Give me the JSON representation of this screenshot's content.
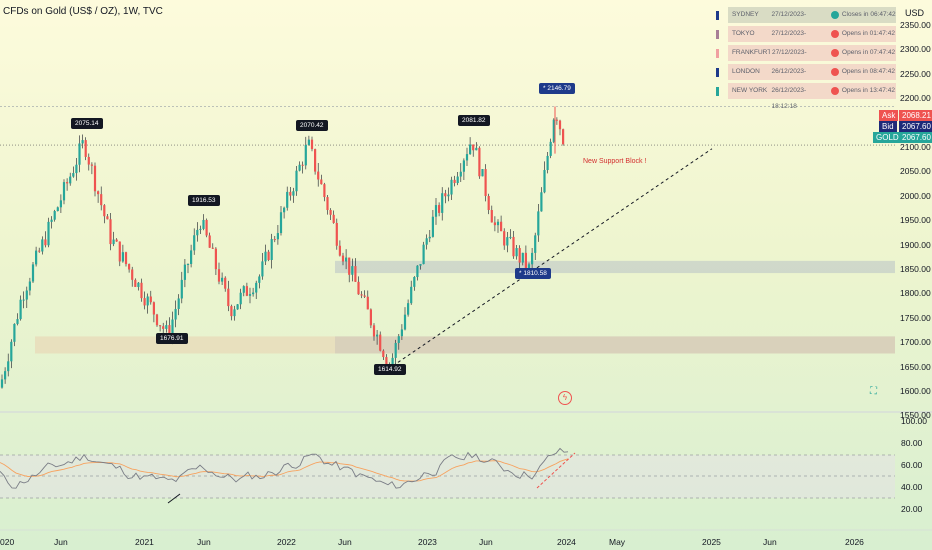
{
  "title": "CFDs on Gold (US$ / OZ), 1W, TVC",
  "currency": "USD",
  "sessions": [
    {
      "name": "SYDNEY",
      "time": "27/12/2023-09:12:18",
      "status": "Closes in 06:47:42",
      "open": true,
      "color": "#1e3a8a",
      "bg": "#d9dcc4"
    },
    {
      "name": "TOKYO",
      "time": "27/12/2023-07:12:18",
      "status": "Opens in 01:47:42",
      "open": false,
      "color": "#a87e96",
      "bg": "#f3d9c9"
    },
    {
      "name": "FRANKFURT",
      "time": "27/12/2023-00:12:18",
      "status": "Opens in 07:47:42",
      "open": false,
      "color": "#f0a0a0",
      "bg": "#f3d9c9"
    },
    {
      "name": "LONDON",
      "time": "26/12/2023-23:12:18",
      "status": "Opens in 08:47:42",
      "open": false,
      "color": "#1e3a8a",
      "bg": "#f3d9c9"
    },
    {
      "name": "NEW YORK",
      "time": "26/12/2023-18:12:18",
      "status": "Opens in 13:47:42",
      "open": false,
      "color": "#26a69a",
      "bg": "#f3d9c9"
    }
  ],
  "price_axis": [
    "2350.00",
    "2300.00",
    "2250.00",
    "2200.00",
    "2150.00",
    "2100.00",
    "2050.00",
    "2000.00",
    "1950.00",
    "1900.00",
    "1850.00",
    "1800.00",
    "1750.00",
    "1700.00",
    "1650.00",
    "1600.00",
    "1550.00"
  ],
  "price_tags": {
    "ask_label": "Ask",
    "ask": "2068.21",
    "bid_label": "Bid",
    "bid": "2067.60",
    "symbol": "GOLD",
    "last": "2067.60"
  },
  "rsi_axis": [
    "100.00",
    "80.00",
    "60.00",
    "40.00",
    "20.00"
  ],
  "time_axis": [
    "020",
    "Jun",
    "2021",
    "Jun",
    "2022",
    "Jun",
    "2023",
    "Jun",
    "2024",
    "May",
    "2025",
    "Jun",
    "2026"
  ],
  "annotations": {
    "a1": "2075.14",
    "a2": "1916.53",
    "a3": "1676.91",
    "a4": "2070.42",
    "a5": "1614.92",
    "a6": "2081.82",
    "a7": "* 2146.79",
    "a8": "* 1810.58"
  },
  "note": "New Support Block !",
  "colors": {
    "up": "#26a69a",
    "down": "#ef5350",
    "wick": "#131722"
  },
  "chart_data": {
    "type": "candlestick",
    "title": "CFDs on Gold (US$ / OZ), 1W, TVC",
    "ylabel": "USD",
    "ylim": [
      1520,
      2370
    ],
    "key_levels": {
      "high": 2146.79,
      "low": 1614.92,
      "last": 2067.6
    },
    "support_zones": [
      [
        1805,
        1830
      ],
      [
        1640,
        1675
      ]
    ],
    "swing_points": [
      2075.14,
      1916.53,
      1676.91,
      2070.42,
      1614.92,
      2081.82,
      2146.79,
      1810.58
    ],
    "rsi": {
      "ylim": [
        10,
        105
      ],
      "levels": [
        70,
        50,
        30
      ]
    }
  }
}
